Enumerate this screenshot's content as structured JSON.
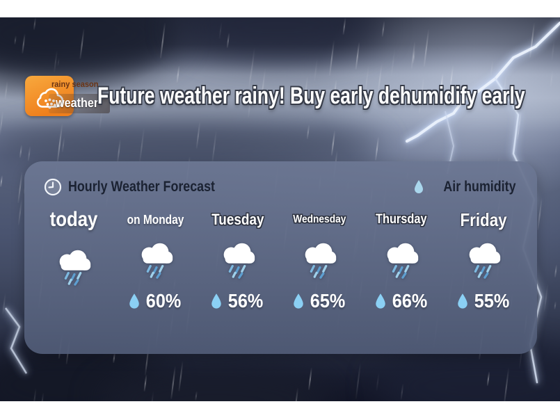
{
  "brand": {
    "tagline": "rainy season",
    "name": "weather"
  },
  "headline": "Future weather rainy! Buy early dehumidify early",
  "forecast_panel": {
    "title": "Hourly Weather Forecast",
    "legend": "Air humidity",
    "columns": [
      {
        "day": "today",
        "condition": "rain",
        "humidity": null
      },
      {
        "day": "on Monday",
        "condition": "rain",
        "humidity": "60%"
      },
      {
        "day": "Tuesday",
        "condition": "rain",
        "humidity": "56%"
      },
      {
        "day": "Wednesday",
        "condition": "rain",
        "humidity": "65%"
      },
      {
        "day": "Thursday",
        "condition": "rain",
        "humidity": "66%"
      },
      {
        "day": "Friday",
        "condition": "rain",
        "humidity": "55%"
      }
    ]
  },
  "colors": {
    "accent_orange": "#ef7f1c",
    "accent_orange_light": "#f8a93e",
    "tagline_brown": "#6b3414",
    "header_text": "#1b2232",
    "droplet_blue": "#8bd0f4",
    "rain_stroke_dark": "#5e9fd0",
    "rain_stroke_light": "#9fd0ea"
  }
}
